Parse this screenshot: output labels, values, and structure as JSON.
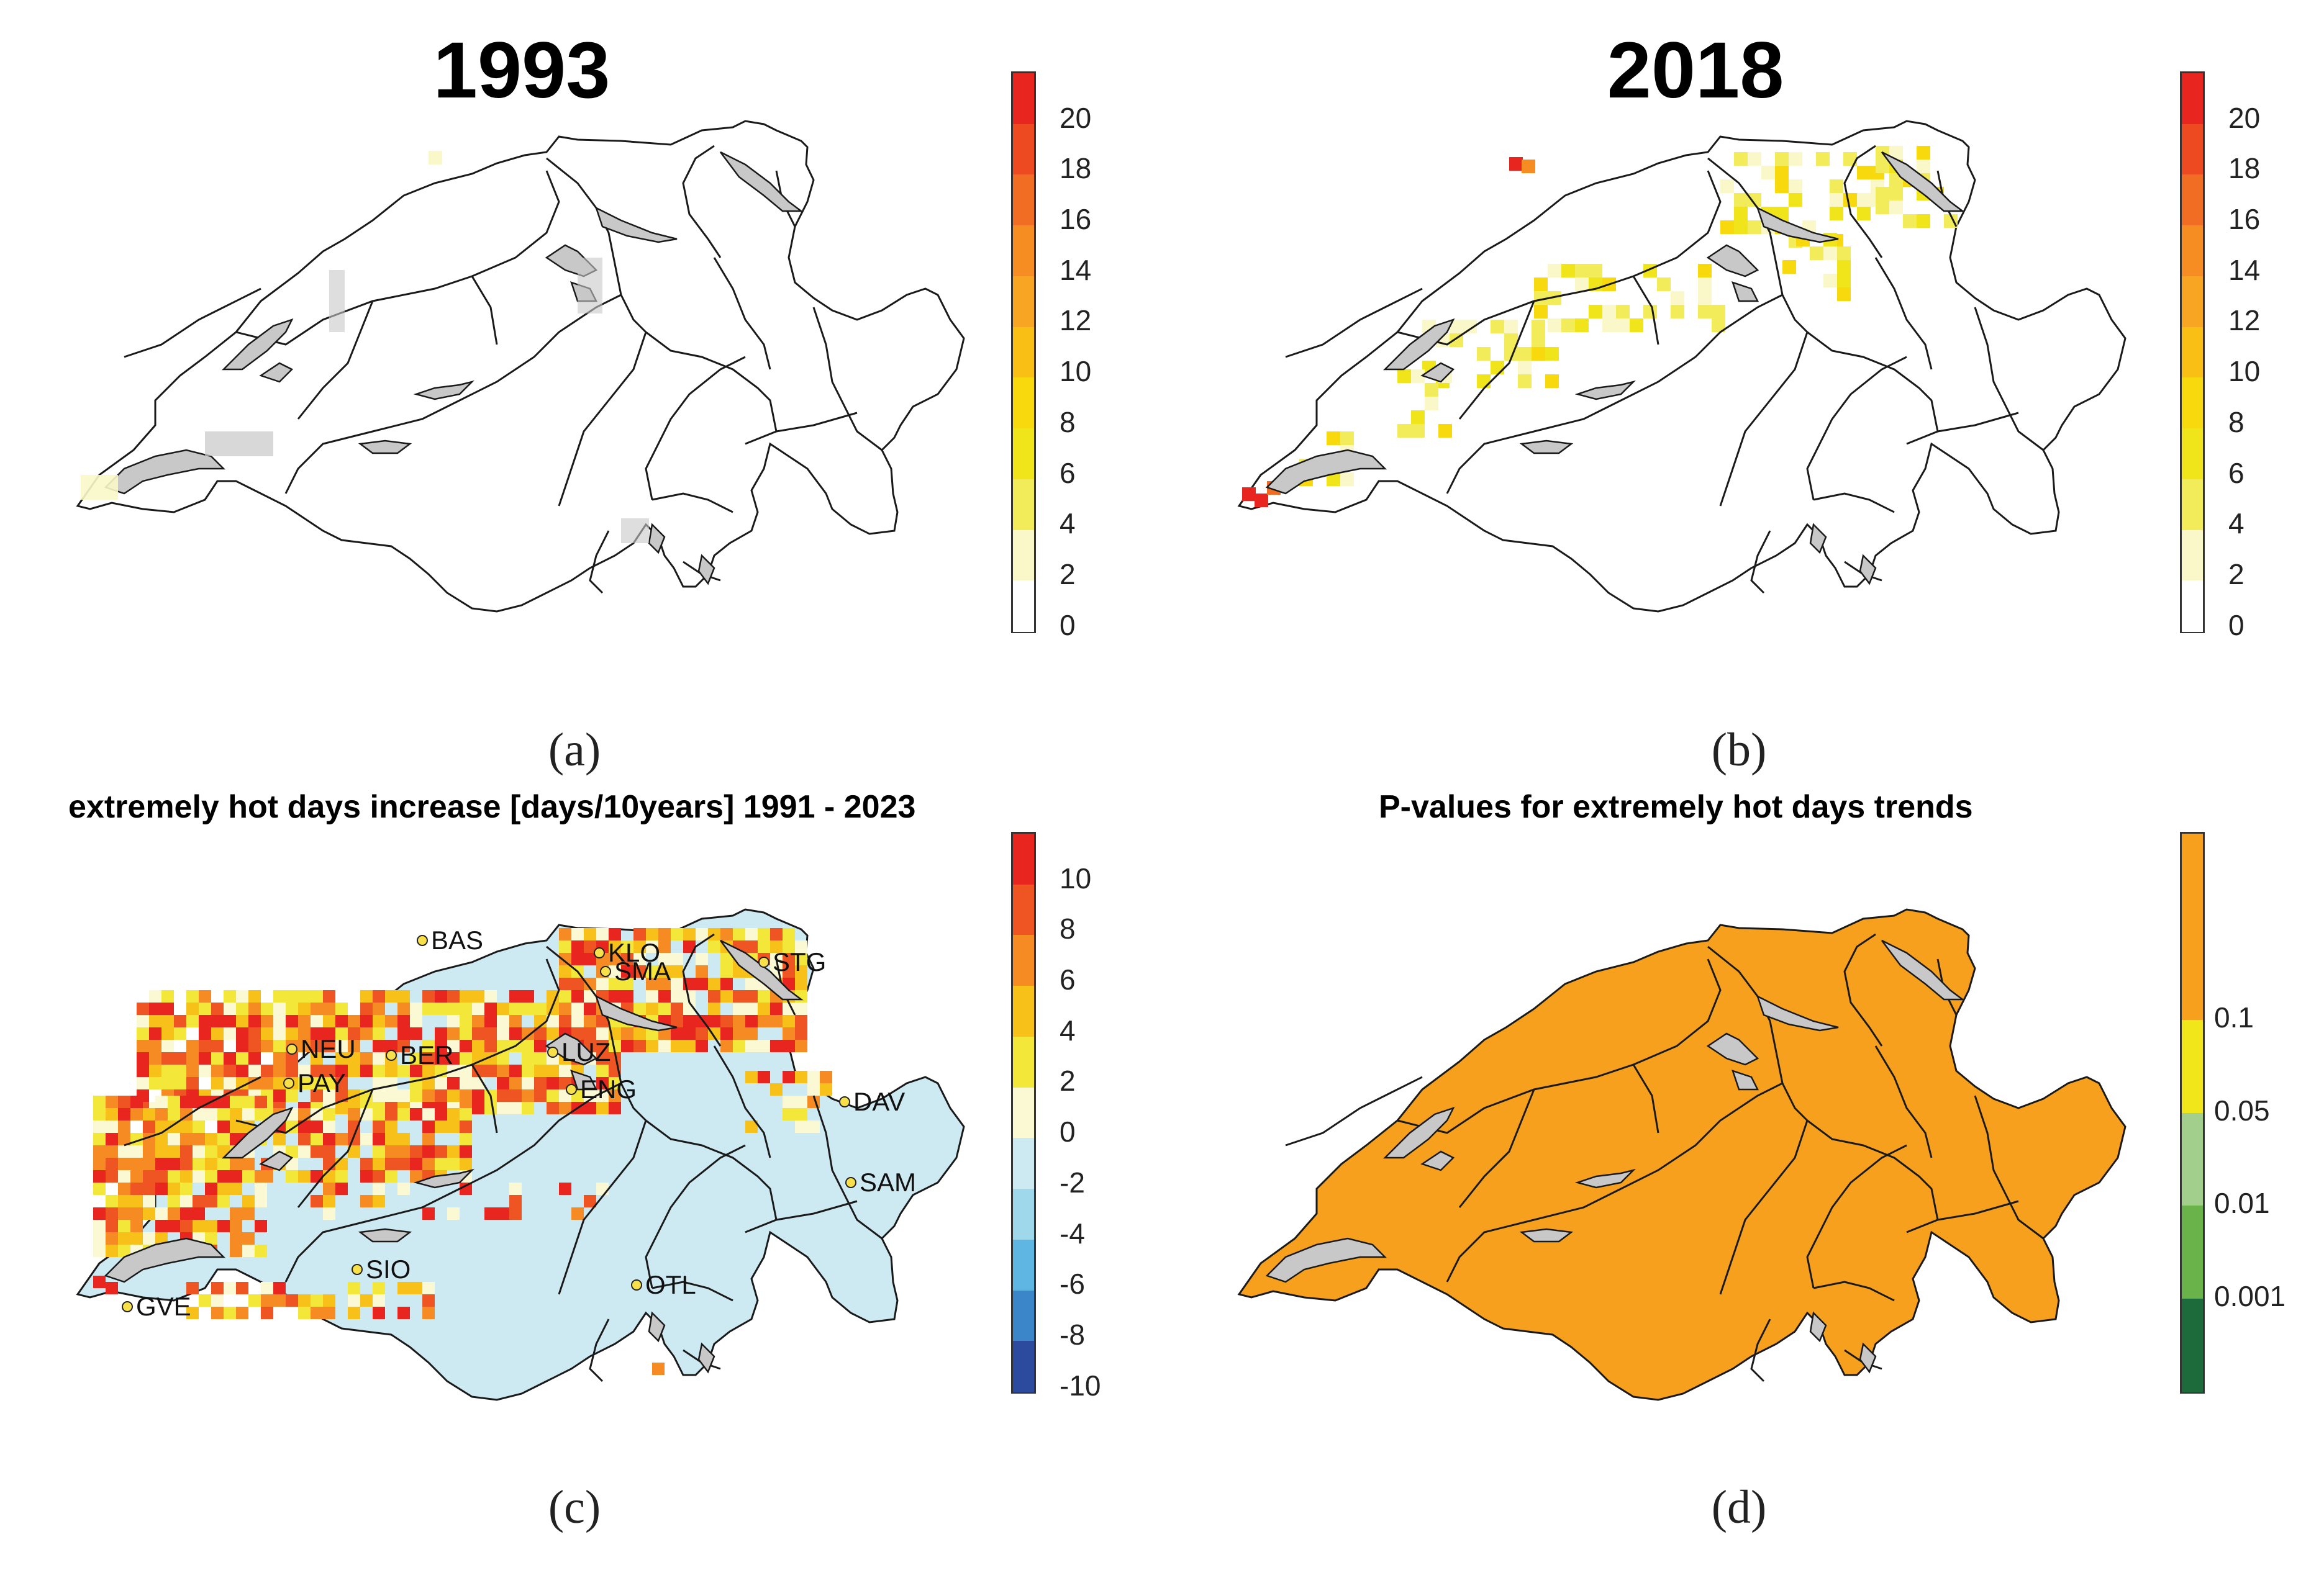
{
  "panels": {
    "a": {
      "title": "1993",
      "caption": "(a)",
      "colorbar": {
        "labels": [
          "20",
          "18",
          "16",
          "14",
          "12",
          "10",
          "8",
          "6",
          "4",
          "2",
          "0"
        ],
        "colors": [
          "#e8261f",
          "#ee4a22",
          "#f26d24",
          "#f58d22",
          "#f8a524",
          "#f9bf14",
          "#f7d90e",
          "#efe51a",
          "#f3ec5a",
          "#faf7c8",
          "#ffffff"
        ]
      }
    },
    "b": {
      "title": "2018",
      "caption": "(b)",
      "colorbar": {
        "labels": [
          "20",
          "18",
          "16",
          "14",
          "12",
          "10",
          "8",
          "6",
          "4",
          "2",
          "0"
        ],
        "colors": [
          "#e8261f",
          "#ee4a22",
          "#f26d24",
          "#f58d22",
          "#f8a524",
          "#f9bf14",
          "#f7d90e",
          "#efe51a",
          "#f3ec5a",
          "#faf7c8",
          "#ffffff"
        ]
      }
    },
    "c": {
      "title": "extremely hot days increase [days/10years] 1991 - 2023",
      "caption": "(c)",
      "colorbar": {
        "labels": [
          "10",
          "8",
          "6",
          "4",
          "2",
          "0",
          "-2",
          "-4",
          "-6",
          "-8",
          "-10"
        ],
        "colors": [
          "#e8261f",
          "#ef5522",
          "#f58b22",
          "#f7c11a",
          "#f3e83a",
          "#fbf8d4",
          "#cde9f1",
          "#9fd8ea",
          "#5fb6e3",
          "#3b86c9",
          "#2d4b9e"
        ]
      },
      "stations": [
        {
          "code": "BAS"
        },
        {
          "code": "KLO"
        },
        {
          "code": "SMA"
        },
        {
          "code": "STG"
        },
        {
          "code": "NEU"
        },
        {
          "code": "BER"
        },
        {
          "code": "LUZ"
        },
        {
          "code": "PAY"
        },
        {
          "code": "ENG"
        },
        {
          "code": "DAV"
        },
        {
          "code": "SAM"
        },
        {
          "code": "GVE"
        },
        {
          "code": "SIO"
        },
        {
          "code": "OTL"
        }
      ]
    },
    "d": {
      "title": "P-values for extremely hot days trends",
      "caption": "(d)",
      "colorbar": {
        "labels": [
          "0.1",
          "0.05",
          "0.01",
          "0.001"
        ],
        "colors": [
          "#f6a01e",
          "#f0e61a",
          "#a3cf8c",
          "#6ab24a",
          "#1d6b3a"
        ]
      }
    }
  },
  "colors": {
    "lake": "#c8c8c8",
    "border": "#1a1a1a",
    "swiss_fill_c": "#cde9f1",
    "swiss_fill_d": "#f6a01e"
  }
}
